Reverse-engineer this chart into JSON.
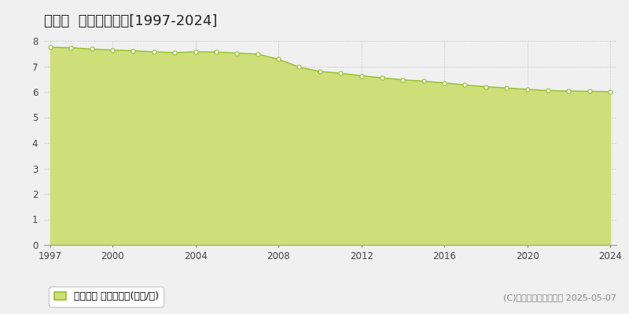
{
  "title": "国富町  基準地価推移[1997-2024]",
  "years": [
    1997,
    1998,
    1999,
    2000,
    2001,
    2002,
    2003,
    2004,
    2005,
    2006,
    2007,
    2008,
    2009,
    2010,
    2011,
    2012,
    2013,
    2014,
    2015,
    2016,
    2017,
    2018,
    2019,
    2020,
    2021,
    2022,
    2023,
    2024
  ],
  "values": [
    7.75,
    7.73,
    7.68,
    7.64,
    7.61,
    7.57,
    7.54,
    7.57,
    7.56,
    7.52,
    7.48,
    7.28,
    6.97,
    6.8,
    6.73,
    6.63,
    6.55,
    6.47,
    6.42,
    6.35,
    6.27,
    6.2,
    6.15,
    6.1,
    6.05,
    6.03,
    6.02,
    6.01
  ],
  "line_color": "#96be28",
  "fill_color": "#cede78",
  "marker_facecolor": "#ffffff",
  "marker_edgecolor": "#96be28",
  "grid_color": "#bbbbbb",
  "bg_color": "#f0f0f0",
  "plot_bg_color": "#f0f0f0",
  "xlim": [
    1997,
    2024
  ],
  "ylim": [
    0,
    8
  ],
  "yticks": [
    0,
    1,
    2,
    3,
    4,
    5,
    6,
    7,
    8
  ],
  "xticks": [
    1997,
    2000,
    2004,
    2008,
    2012,
    2016,
    2020,
    2024
  ],
  "legend_label": "基準地価 平均坪単価(万円/坪)",
  "copyright_text": "(C)土地価格ドットコム 2025-05-07",
  "title_fontsize": 13,
  "tick_fontsize": 8.5,
  "legend_fontsize": 9,
  "copyright_fontsize": 8
}
